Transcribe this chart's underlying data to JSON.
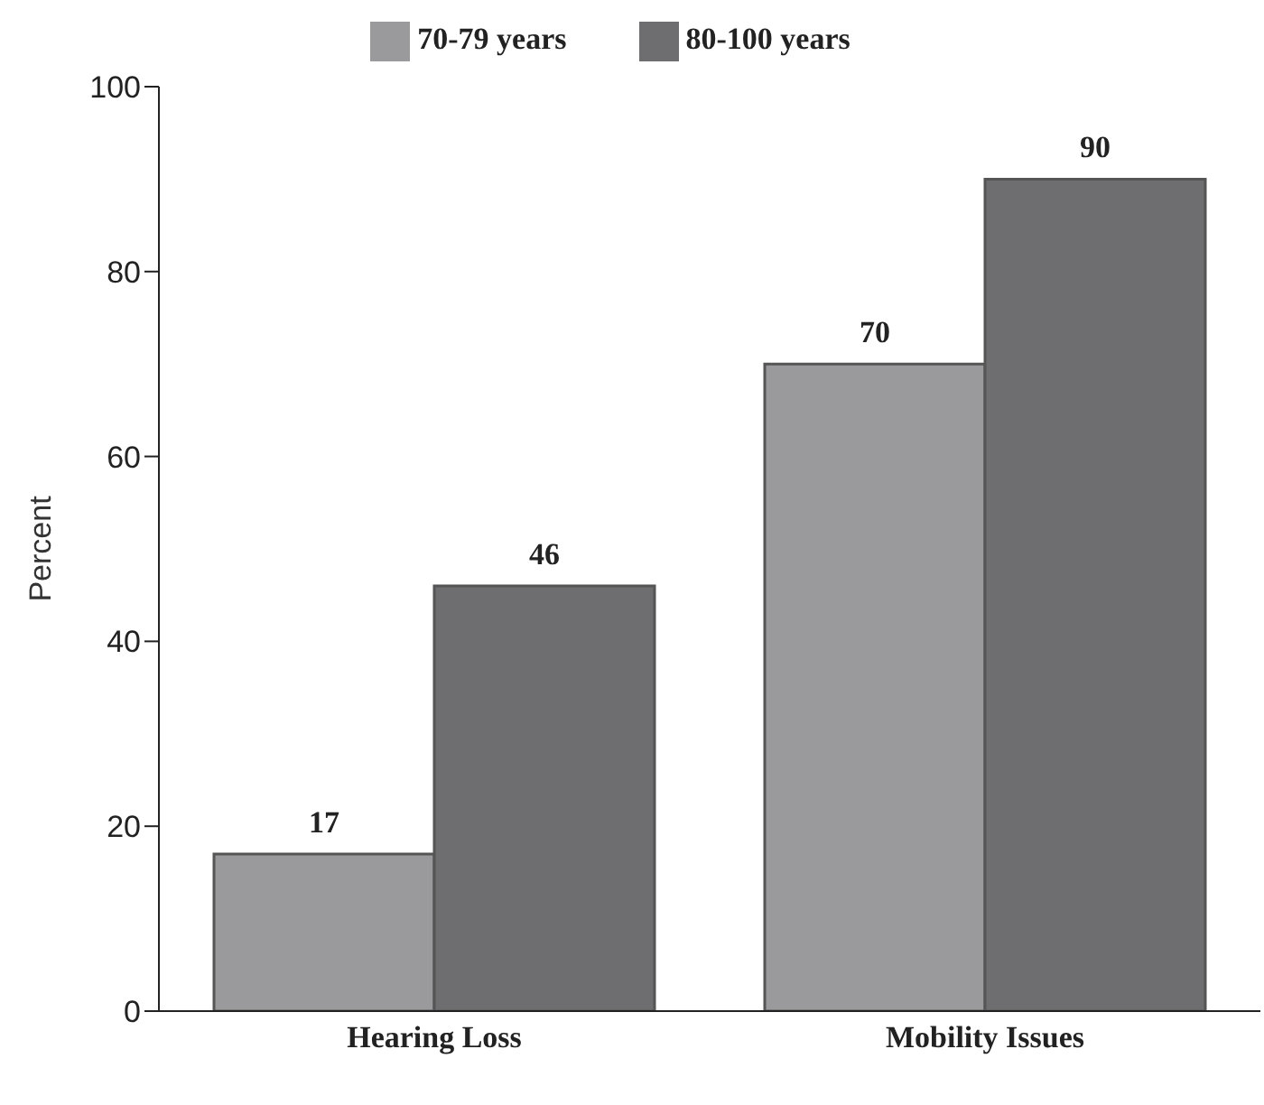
{
  "chart_data": {
    "type": "bar",
    "ylabel": "Percent",
    "categories": [
      "Hearing Loss",
      "Mobility  Issues"
    ],
    "series": [
      {
        "name": "70-79 years",
        "color": "#9a9a9c",
        "values": [
          17,
          70
        ]
      },
      {
        "name": "80-100 years",
        "color": "#6e6e70",
        "values": [
          46,
          90
        ]
      }
    ],
    "ylim": [
      0,
      100
    ],
    "yticks": [
      0,
      20,
      40,
      60,
      80,
      100
    ],
    "grid": false,
    "legend": "top",
    "data_labels": true
  }
}
